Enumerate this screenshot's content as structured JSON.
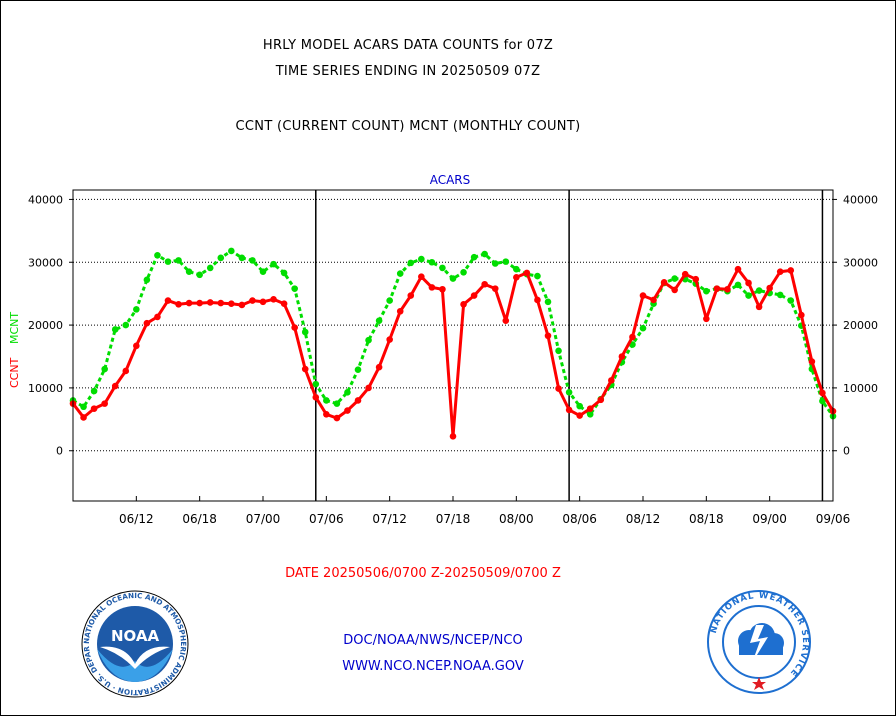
{
  "header": {
    "line1": "HRLY MODEL ACARS DATA COUNTS for 07Z",
    "line2": "TIME SERIES ENDING IN 20250509 07Z",
    "line3": "CCNT (CURRENT COUNT) MCNT (MONTHLY COUNT)"
  },
  "chart_data": {
    "type": "line",
    "title": "ACARS",
    "ylabel_left": "CCNT",
    "ylabel_left_2": "MCNT",
    "ylim": [
      -8000,
      41500
    ],
    "yticks": [
      0,
      10000,
      20000,
      30000,
      40000
    ],
    "ytick_labels": [
      "0",
      "10000",
      "20000",
      "30000",
      "40000"
    ],
    "xlim": [
      0,
      72
    ],
    "xticks": [
      6,
      12,
      18,
      24,
      30,
      36,
      42,
      48,
      54,
      60,
      66,
      72
    ],
    "xtick_labels": [
      "06/12",
      "06/18",
      "07/00",
      "07/06",
      "07/12",
      "07/18",
      "08/00",
      "08/06",
      "08/12",
      "08/18",
      "09/00",
      "09/06"
    ],
    "day_boundaries": [
      23,
      47,
      71
    ],
    "grid": true,
    "series": [
      {
        "name": "CCNT",
        "color": "#ff0000",
        "x": [
          0,
          1,
          2,
          3,
          4,
          5,
          6,
          7,
          8,
          9,
          10,
          11,
          12,
          13,
          14,
          15,
          16,
          17,
          18,
          19,
          20,
          21,
          22,
          23,
          24,
          25,
          26,
          27,
          28,
          29,
          30,
          31,
          32,
          33,
          34,
          35,
          36,
          37,
          38,
          39,
          40,
          41,
          42,
          43,
          44,
          45,
          46,
          47,
          48,
          49,
          50,
          51,
          52,
          53,
          54,
          55,
          56,
          57,
          58,
          59,
          60,
          61,
          62,
          63,
          64,
          65,
          66,
          67,
          68,
          69,
          70,
          71,
          72
        ],
        "values": [
          7500,
          5300,
          6700,
          7500,
          10300,
          12700,
          16700,
          20300,
          21300,
          23900,
          23300,
          23500,
          23500,
          23600,
          23500,
          23400,
          23200,
          23900,
          23700,
          24100,
          23400,
          19600,
          13000,
          8500,
          5800,
          5200,
          6400,
          8000,
          10000,
          13300,
          17700,
          22200,
          24700,
          27700,
          26000,
          25700,
          2300,
          23300,
          24700,
          26500,
          25800,
          20700,
          27600,
          28300,
          24000,
          18300,
          9900,
          6500,
          5600,
          6700,
          8100,
          11200,
          15000,
          18100,
          24700,
          24000,
          26800,
          25600,
          28100,
          27300,
          21000,
          25800,
          25700,
          28900,
          26700,
          22900,
          25900,
          28500,
          28700,
          21600,
          14200,
          9200,
          6300
        ]
      },
      {
        "name": "MCNT",
        "color": "#00dd00",
        "x": [
          0,
          1,
          2,
          3,
          4,
          5,
          6,
          7,
          8,
          9,
          10,
          11,
          12,
          13,
          14,
          15,
          16,
          17,
          18,
          19,
          20,
          21,
          22,
          23,
          24,
          25,
          26,
          27,
          28,
          29,
          30,
          31,
          32,
          33,
          34,
          35,
          36,
          37,
          38,
          39,
          40,
          41,
          42,
          43,
          44,
          45,
          46,
          47,
          48,
          49,
          50,
          51,
          52,
          53,
          54,
          55,
          56,
          57,
          58,
          59,
          60,
          61,
          62,
          63,
          64,
          65,
          66,
          67,
          68,
          69,
          70,
          71,
          72
        ],
        "values": [
          8000,
          7000,
          9500,
          13000,
          19300,
          20000,
          22500,
          27200,
          31100,
          30100,
          30300,
          28500,
          28000,
          29100,
          30700,
          31800,
          30700,
          30300,
          28500,
          29700,
          28300,
          25800,
          18900,
          10600,
          8000,
          7500,
          9300,
          12900,
          17600,
          20700,
          23900,
          28200,
          29900,
          30500,
          30000,
          29100,
          27400,
          28400,
          30800,
          31300,
          29800,
          30100,
          28900,
          28100,
          27800,
          23700,
          15900,
          9300,
          7100,
          5800,
          8200,
          10500,
          14100,
          16900,
          19500,
          23400,
          26700,
          27400,
          27300,
          26600,
          25400,
          25800,
          25400,
          26400,
          24700,
          25500,
          25100,
          24800,
          23900,
          19900,
          13000,
          7900,
          5500
        ]
      }
    ]
  },
  "footer": {
    "date_range": "DATE 20250506/0700 Z-20250509/0700 Z",
    "org": "DOC/NOAA/NWS/NCEP/NCO",
    "url": "WWW.NCO.NCEP.NOAA.GOV"
  },
  "logos": {
    "left_name": "noaa-logo",
    "left_text": "NOAA",
    "left_ring_text": "NATIONAL OCEANIC AND ATMOSPHERIC ADMINISTRATION · U.S. DEPARTMENT OF COMMERCE",
    "right_name": "nws-logo",
    "right_ring_text": "NATIONAL WEATHER SERVICE",
    "colors": {
      "noaa_blue": "#1e5aa8",
      "nws_blue": "#1e6fd0",
      "nws_red": "#e11b22"
    }
  }
}
